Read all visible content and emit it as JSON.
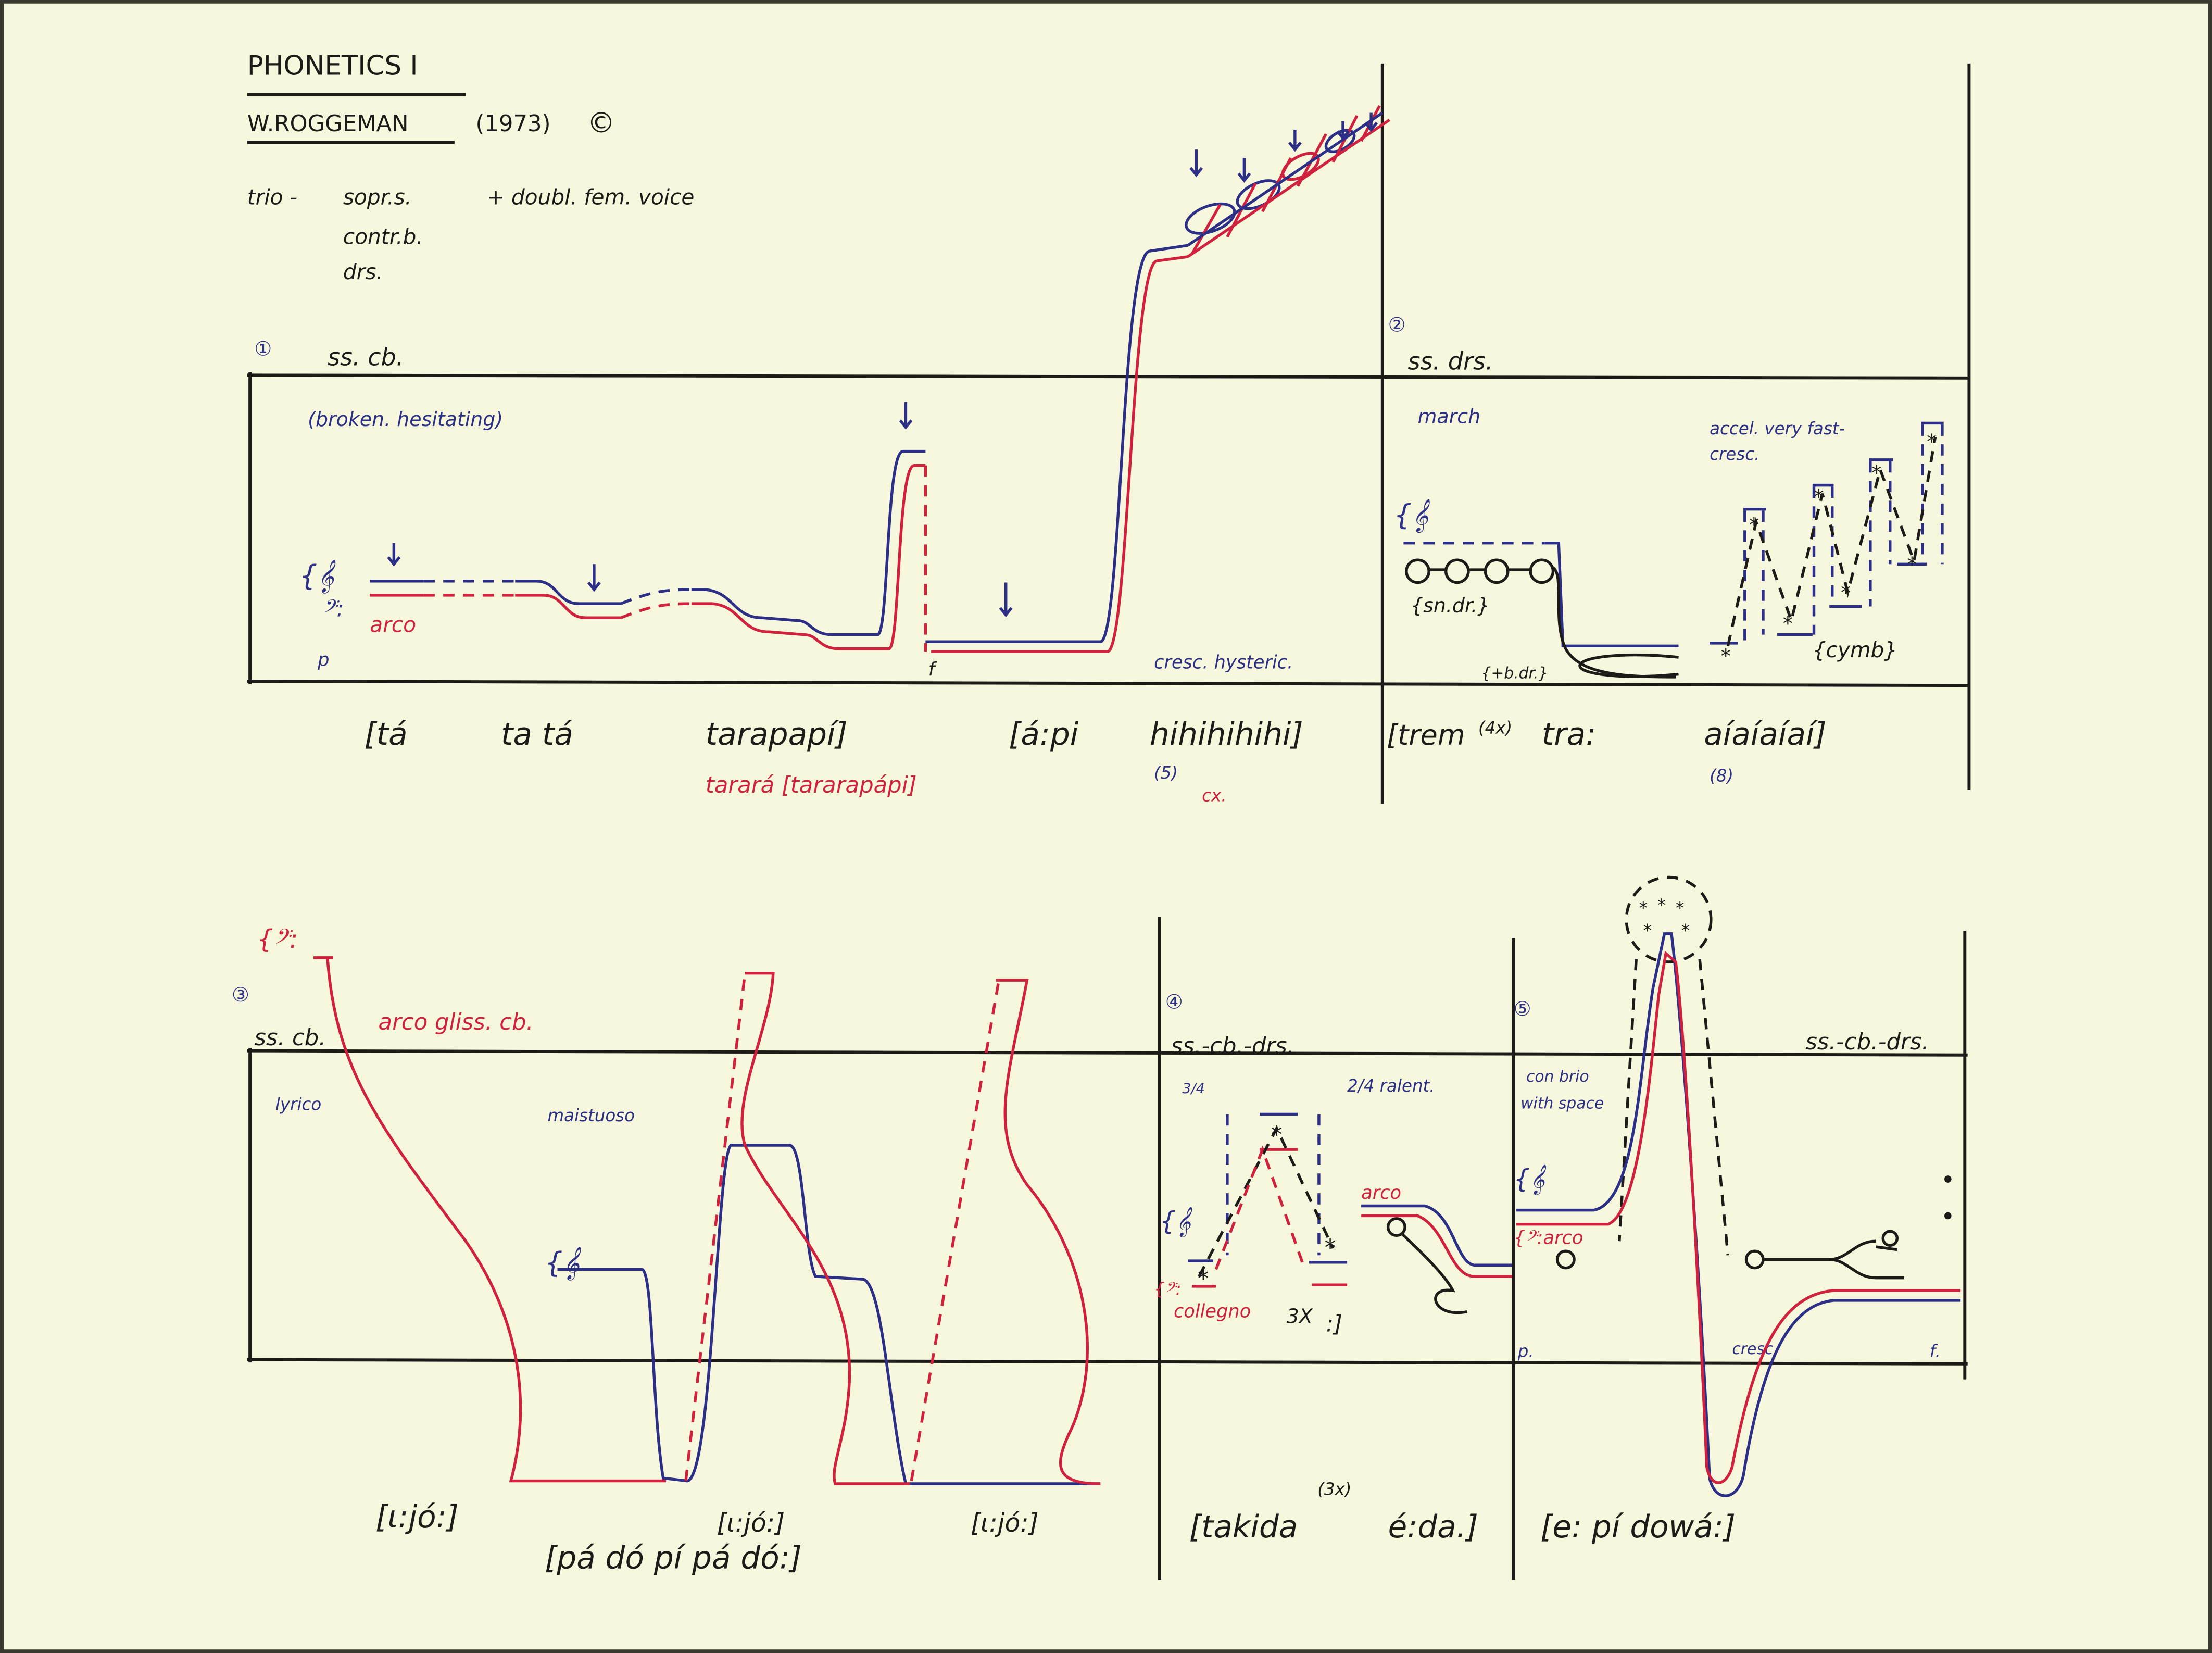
{
  "colors": {
    "paper": "#f6f7dc",
    "ink": "#1d1a18",
    "blue": "#2c2f86",
    "red": "#d0213f"
  },
  "header": {
    "title": "PHONETICS I",
    "composer": "W.ROGGEMAN",
    "year": "(1973)",
    "copyright": "©",
    "instrumentation": {
      "trio": "trio -",
      "line1": "sopr.s.",
      "extra": "+ doubl. fem. voice",
      "line2": "contr.b.",
      "line3": "drs."
    }
  },
  "section1": {
    "number": "①",
    "instruments": "ss. cb.",
    "direction": "(broken. hesitating)",
    "treble_clef": "{𝄞",
    "bass_clef": "𝄢:",
    "arco": "arco",
    "dyn_p": "p",
    "dyn_f": "f",
    "cresc": "cresc. hysteric.",
    "phonetics": [
      "[tá",
      "ta tá",
      "tarapapí]",
      "[á:pi",
      "hihihihihi]"
    ],
    "red_phonetics": "tarará [tararapápi]",
    "count": "(5)",
    "red_note": "cx."
  },
  "section2": {
    "number": "②",
    "instruments": "ss. drs.",
    "direction": "march",
    "treble_clef": "{𝄞",
    "snare": "{sn.dr.}",
    "bass_drum": "{+b.dr.}",
    "accel": "accel. very fast-",
    "cresc": "cresc.",
    "cymbal": "{cymb}",
    "phonetics": [
      "[trem",
      "(4x)",
      "tra:",
      "aíaíaíaí]"
    ],
    "count": "(8)"
  },
  "section3": {
    "number": "③",
    "instruments": "ss. cb.",
    "bass_clef": "{𝄢:",
    "arco_gliss": "arco gliss. cb.",
    "lyrico": "lyrico",
    "maestoso": "maistuoso",
    "treble_clef": "{𝄞",
    "phonetics": [
      "[ι:jó:]",
      "[ι:jó:]",
      "[ι:jó:]"
    ],
    "phonetics_lower": "[pá dó pí pá dó:]"
  },
  "section4": {
    "number": "④",
    "instruments": "ss.-cb.-drs.",
    "meter1": "3/4",
    "meter2": "2/4 ralent.",
    "treble_clef": "{𝄞",
    "bass_clef": "{𝄢:",
    "collegno": "collegno",
    "repeat": "3X",
    "repeat_sign": ":]",
    "arco": "arco",
    "phonetics": [
      "[takida",
      "(3x)",
      "é:da.]"
    ]
  },
  "section5": {
    "number": "⑤",
    "instruments": "ss.-cb.-drs.",
    "con_brio": "con brio",
    "with_space": "with space",
    "treble_clef": "{𝄞",
    "bass_arco": "{𝄢:arco",
    "dyn_p": "p.",
    "cresc": "cresc",
    "dyn_f": "f.",
    "phonetics": "[e: pí dowá:]"
  },
  "icons": {
    "arrow": "down-arrow",
    "star": "asterisk",
    "circle": "drum-head-circle"
  }
}
